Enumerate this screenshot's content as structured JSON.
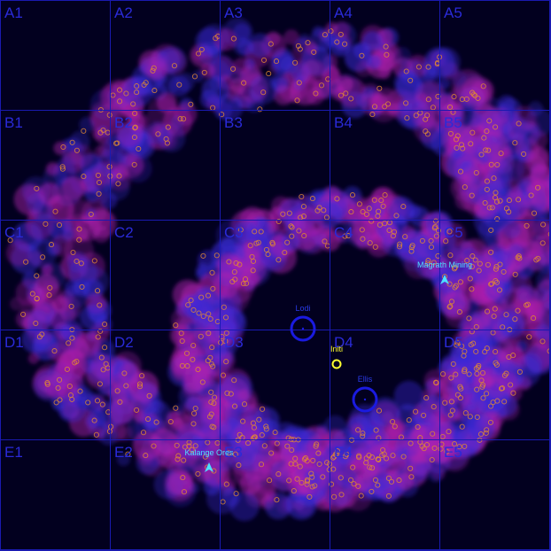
{
  "colors": {
    "background": "#02001f",
    "grid": "#1a1ab0",
    "grid_label": "#2a2ad8",
    "asteroid_blue": "#3a2ad8",
    "asteroid_magenta": "#b020b0",
    "ore_dot": "#e08a30",
    "station": "#4de0ff",
    "planet": "#1a1ae0",
    "player": "#ffff30"
  },
  "grid": {
    "columns": [
      "1",
      "2",
      "3",
      "4",
      "5"
    ],
    "rows": [
      "A",
      "B",
      "C",
      "D",
      "E"
    ],
    "cells": [
      "A1",
      "A2",
      "A3",
      "A4",
      "A5",
      "B1",
      "B2",
      "B3",
      "B4",
      "B5",
      "C1",
      "C2",
      "C3",
      "C4",
      "C5",
      "D1",
      "D2",
      "D3",
      "D4",
      "D5",
      "E1",
      "E2",
      "E3",
      "E4",
      "E5"
    ]
  },
  "markers": [
    {
      "id": "magrath-mining",
      "label": "Magrath Mining",
      "kind": "station",
      "icon": "station-arrow-icon"
    },
    {
      "id": "kalange-ores",
      "label": "Kalange Ores",
      "kind": "station",
      "icon": "station-arrow-icon"
    },
    {
      "id": "lodi",
      "label": "Lodi",
      "kind": "planet",
      "icon": "planet-ring-icon"
    },
    {
      "id": "ellis",
      "label": "Ellis",
      "kind": "planet",
      "icon": "planet-ring-icon"
    },
    {
      "id": "initi",
      "label": "Initi",
      "kind": "player",
      "icon": "player-ring-icon"
    }
  ]
}
